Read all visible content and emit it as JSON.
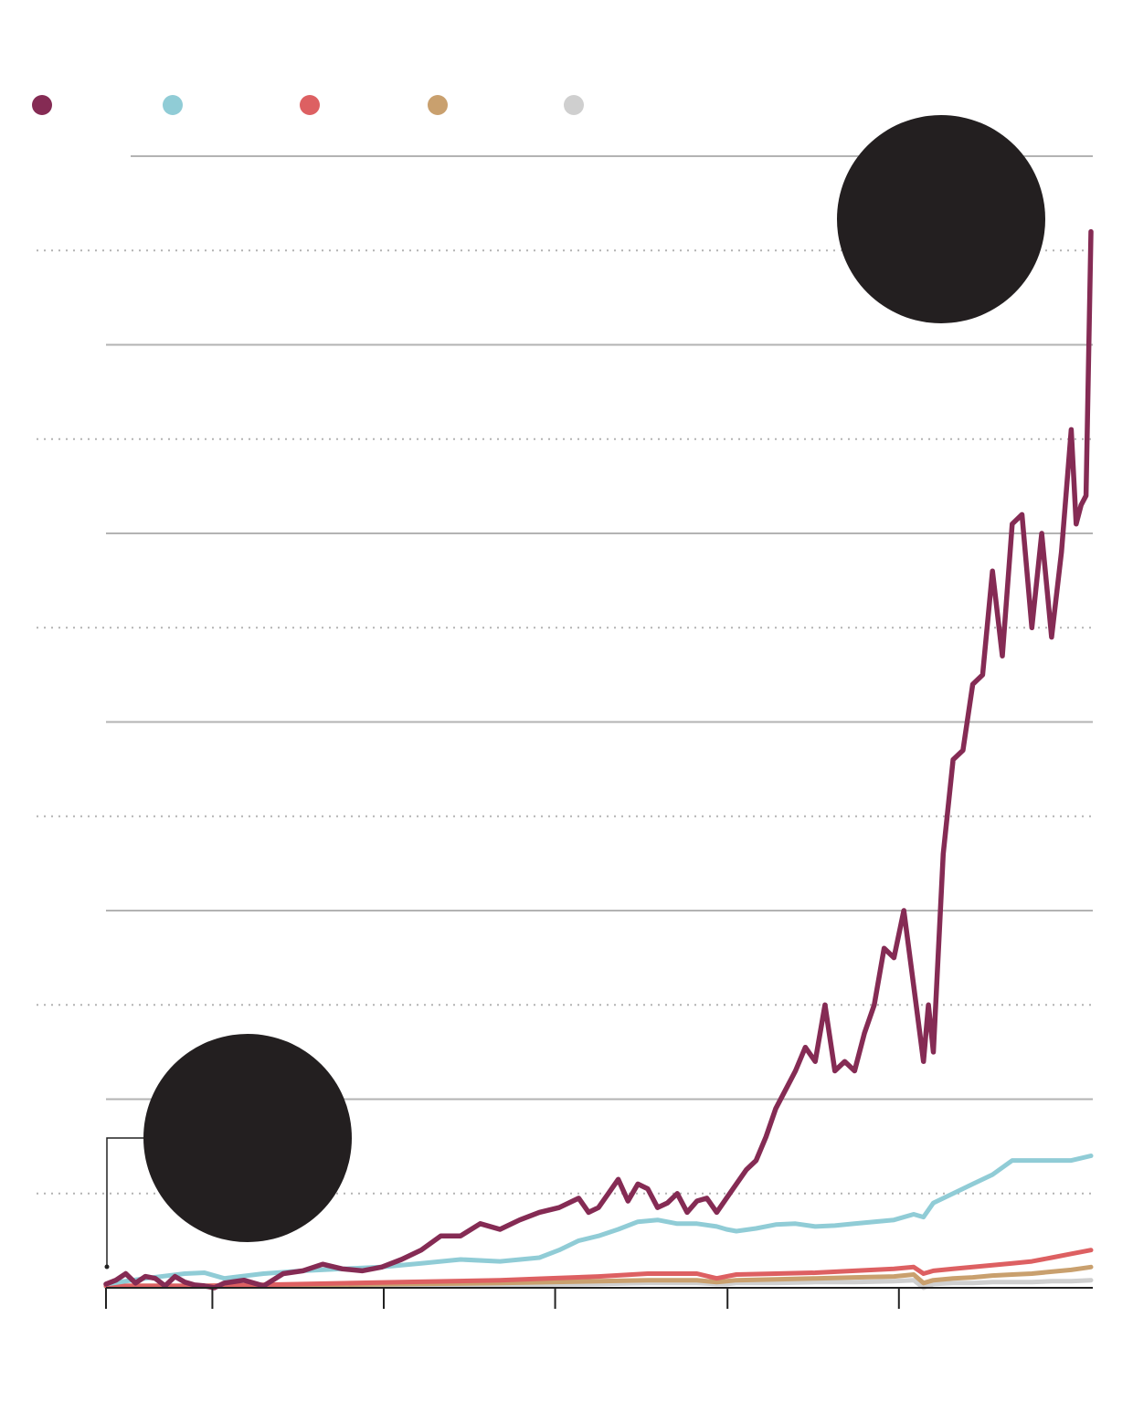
{
  "colors": {
    "background": "#ffffff",
    "axis": "#222222",
    "gridline_solid": "#b3b3b3",
    "gridline_dotted": "#b3b3b3",
    "annotation_circle": "#231f20"
  },
  "legend": [
    {
      "color": "#852b54"
    },
    {
      "color": "#90ccd6"
    },
    {
      "color": "#dd6062"
    },
    {
      "color": "#c9a06e"
    },
    {
      "color": "#cfcfcf"
    }
  ],
  "chart_data": {
    "type": "line",
    "title": "",
    "xlabel": "",
    "ylabel": "",
    "x_range": [
      0,
      100
    ],
    "ylim": [
      0,
      12
    ],
    "gridlines_solid": [
      2,
      4,
      6,
      8,
      10,
      12
    ],
    "gridlines_dotted": [
      1,
      3,
      5,
      7,
      9,
      11
    ],
    "x_ticks": [
      0,
      10.8,
      28.2,
      45.6,
      63.1,
      80.5
    ],
    "grid": true,
    "legend_position": "top-left",
    "series": [
      {
        "color": "#852b54",
        "x": [
          0,
          1,
          2,
          3,
          4,
          5,
          6,
          7,
          8,
          9,
          10,
          11,
          12,
          14,
          16,
          18,
          20,
          22,
          24,
          26,
          28,
          30,
          32,
          34,
          36,
          38,
          40,
          42,
          44,
          46,
          48,
          49,
          50,
          51,
          52,
          53,
          54,
          55,
          56,
          57,
          58,
          59,
          60,
          61,
          62,
          63,
          64,
          65,
          66,
          67,
          68,
          69,
          70,
          71,
          72,
          73,
          74,
          75,
          76,
          77,
          78,
          79,
          80,
          81,
          82,
          83,
          83.5,
          84,
          85,
          86,
          87,
          88,
          89,
          90,
          91,
          92,
          93,
          94,
          95,
          96,
          97,
          98,
          98.5,
          99,
          99.5,
          100
        ],
        "values": [
          0.04,
          0.08,
          0.15,
          0.05,
          0.12,
          0.1,
          0.02,
          0.12,
          0.06,
          0.03,
          0.02,
          0.0,
          0.05,
          0.08,
          0.02,
          0.15,
          0.18,
          0.25,
          0.2,
          0.18,
          0.22,
          0.3,
          0.4,
          0.55,
          0.55,
          0.68,
          0.62,
          0.72,
          0.8,
          0.85,
          0.95,
          0.8,
          0.85,
          1.0,
          1.15,
          0.92,
          1.1,
          1.05,
          0.85,
          0.9,
          1.0,
          0.8,
          0.92,
          0.95,
          0.8,
          0.95,
          1.1,
          1.25,
          1.35,
          1.6,
          1.9,
          2.1,
          2.3,
          2.55,
          2.4,
          3.0,
          2.3,
          2.4,
          2.3,
          2.7,
          3.0,
          3.6,
          3.5,
          4.0,
          3.2,
          2.4,
          3.0,
          2.5,
          4.6,
          5.6,
          5.7,
          6.4,
          6.5,
          7.6,
          6.7,
          8.1,
          8.2,
          7.0,
          8.0,
          6.9,
          7.8,
          9.1,
          8.1,
          8.3,
          8.4,
          11.2
        ]
      },
      {
        "color": "#90ccd6",
        "x": [
          0,
          4,
          8,
          10,
          12,
          16,
          20,
          24,
          28,
          32,
          36,
          40,
          44,
          46,
          48,
          50,
          52,
          54,
          56,
          58,
          60,
          62,
          63,
          64,
          66,
          68,
          70,
          72,
          74,
          76,
          78,
          80,
          82,
          83,
          84,
          86,
          88,
          90,
          92,
          94,
          96,
          98,
          100
        ],
        "values": [
          0.04,
          0.1,
          0.15,
          0.16,
          0.1,
          0.15,
          0.18,
          0.2,
          0.22,
          0.26,
          0.3,
          0.28,
          0.32,
          0.4,
          0.5,
          0.55,
          0.62,
          0.7,
          0.72,
          0.68,
          0.68,
          0.65,
          0.62,
          0.6,
          0.63,
          0.67,
          0.68,
          0.65,
          0.66,
          0.68,
          0.7,
          0.72,
          0.78,
          0.75,
          0.9,
          1.0,
          1.1,
          1.2,
          1.35,
          1.35,
          1.35,
          1.35,
          1.4
        ]
      },
      {
        "color": "#dd6062",
        "x": [
          0,
          10,
          20,
          30,
          40,
          50,
          55,
          60,
          62,
          63,
          64,
          68,
          72,
          76,
          80,
          82,
          83,
          84,
          86,
          88,
          90,
          92,
          94,
          96,
          98,
          100
        ],
        "values": [
          0.02,
          0.02,
          0.04,
          0.06,
          0.08,
          0.12,
          0.15,
          0.15,
          0.1,
          0.12,
          0.14,
          0.15,
          0.16,
          0.18,
          0.2,
          0.22,
          0.15,
          0.18,
          0.2,
          0.22,
          0.24,
          0.26,
          0.28,
          0.32,
          0.36,
          0.4
        ]
      },
      {
        "color": "#c9a06e",
        "x": [
          0,
          10,
          20,
          30,
          40,
          50,
          55,
          60,
          62,
          63,
          64,
          68,
          72,
          76,
          80,
          82,
          83,
          84,
          86,
          88,
          90,
          92,
          94,
          96,
          98,
          100
        ],
        "values": [
          0.02,
          0.02,
          0.03,
          0.04,
          0.05,
          0.07,
          0.08,
          0.08,
          0.06,
          0.07,
          0.08,
          0.09,
          0.1,
          0.11,
          0.12,
          0.14,
          0.05,
          0.08,
          0.1,
          0.11,
          0.13,
          0.14,
          0.15,
          0.17,
          0.19,
          0.22
        ]
      },
      {
        "color": "#cfcfcf",
        "x": [
          0,
          10,
          20,
          30,
          40,
          50,
          55,
          60,
          62,
          63,
          64,
          68,
          72,
          76,
          80,
          82,
          83,
          84,
          86,
          88,
          90,
          92,
          94,
          96,
          98,
          100
        ],
        "values": [
          0.01,
          0.01,
          0.02,
          0.02,
          0.03,
          0.04,
          0.05,
          0.05,
          0.04,
          0.04,
          0.05,
          0.05,
          0.06,
          0.06,
          0.07,
          0.08,
          0.0,
          0.04,
          0.05,
          0.05,
          0.06,
          0.06,
          0.06,
          0.07,
          0.07,
          0.08
        ]
      }
    ]
  }
}
